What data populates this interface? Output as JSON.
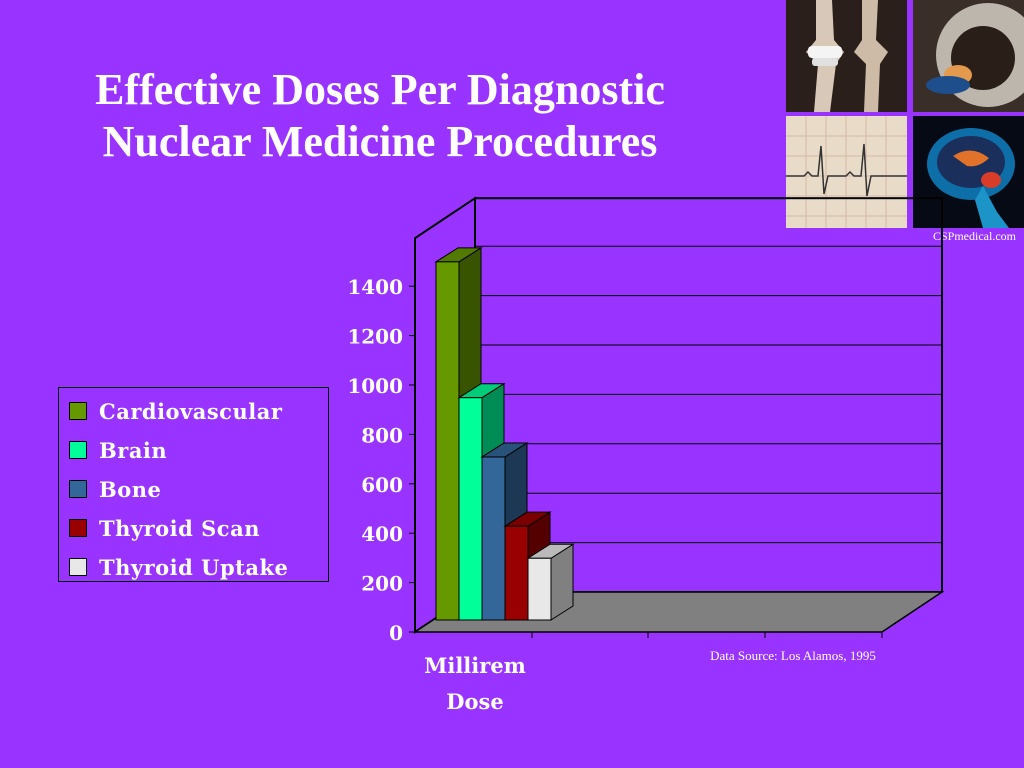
{
  "title": {
    "line1": "Effective Doses Per Diagnostic",
    "line2": "Nuclear Medicine Procedures"
  },
  "brand": "CSPmedical.com",
  "source_note": "Data Source: Los Alamos, 1995",
  "photos": [
    "knee-xray-image",
    "mri-scanner-image",
    "ecg-strip-image",
    "brain-mri-image"
  ],
  "colors": {
    "background": "#9933ff",
    "cardiovascular": "#669900",
    "brain": "#00ff99",
    "bone": "#336699",
    "thyroid_scan": "#990000",
    "thyroid_uptake": "#e8e8e8"
  },
  "chart_data": {
    "type": "bar",
    "categories": [
      "Cardiovascular",
      "Brain",
      "Bone",
      "Thyroid Scan",
      "Thyroid Uptake"
    ],
    "values": [
      1450,
      900,
      660,
      380,
      250
    ],
    "xlabel": "Millirem Dose",
    "xlabel_lines": [
      "Millirem",
      "Dose"
    ],
    "ylabel": "",
    "ylim": [
      0,
      1400
    ],
    "yticks": [
      0,
      200,
      400,
      600,
      800,
      1000,
      1200,
      1400
    ],
    "grid": true,
    "legend_position": "left",
    "legend": [
      "Cardiovascular",
      "Brain",
      "Bone",
      "Thyroid Scan",
      "Thyroid Uptake"
    ],
    "three_d": true
  }
}
